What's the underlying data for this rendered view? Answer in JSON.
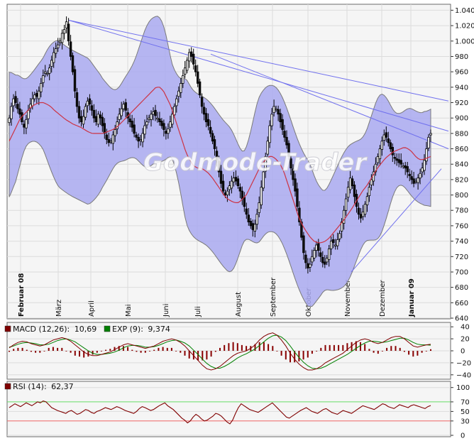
{
  "watermark": "Godmode-Trader",
  "chart_data": [
    {
      "type": "candlestick",
      "title": "",
      "x_labels": [
        "Februar 08",
        "März",
        "April",
        "Mai",
        "Juni",
        "Juli",
        "August",
        "September",
        "Oktober",
        "November",
        "Dezember",
        "Januar 09"
      ],
      "bold_labels": [
        "Februar 08",
        "Januar 09"
      ],
      "yticks": [
        640,
        660,
        680,
        700,
        720,
        740,
        760,
        780,
        800,
        820,
        840,
        860,
        880,
        900,
        920,
        940,
        960,
        980,
        1000,
        1020,
        1040
      ],
      "ylim": [
        640,
        1045
      ],
      "indicators": [
        "Bollinger Bands",
        "Moving Average",
        "Trendlines"
      ],
      "close_series": [
        900,
        915,
        925,
        920,
        912,
        905,
        895,
        888,
        898,
        910,
        918,
        925,
        930,
        928,
        935,
        945,
        955,
        960,
        958,
        965,
        975,
        985,
        990,
        995,
        1000,
        1010,
        1015,
        1025,
        1000,
        980,
        960,
        935,
        915,
        900,
        895,
        902,
        915,
        922,
        918,
        910,
        900,
        895,
        905,
        900,
        890,
        880,
        872,
        868,
        870,
        878,
        885,
        895,
        905,
        912,
        918,
        910,
        900,
        895,
        888,
        880,
        875,
        870,
        872,
        880,
        890,
        895,
        900,
        905,
        908,
        903,
        900,
        895,
        890,
        885,
        880,
        886,
        895,
        905,
        915,
        925,
        935,
        945,
        955,
        965,
        975,
        985,
        980,
        970,
        960,
        945,
        930,
        915,
        905,
        895,
        890,
        880,
        870,
        860,
        845,
        830,
        815,
        805,
        800,
        805,
        812,
        818,
        822,
        818,
        812,
        805,
        795,
        785,
        775,
        765,
        760,
        755,
        762,
        775,
        790,
        810,
        830,
        850,
        870,
        890,
        905,
        915,
        912,
        905,
        895,
        885,
        875,
        865,
        850,
        835,
        820,
        805,
        785,
        765,
        745,
        725,
        712,
        705,
        710,
        720,
        728,
        735,
        728,
        720,
        712,
        710,
        718,
        730,
        740,
        738,
        735,
        742,
        750,
        765,
        780,
        795,
        810,
        822,
        812,
        798,
        785,
        775,
        770,
        778,
        788,
        798,
        810,
        820,
        830,
        840,
        850,
        860,
        870,
        878,
        875,
        868,
        860,
        852,
        848,
        845,
        842,
        840,
        838,
        835,
        830,
        825,
        820,
        815,
        818,
        822,
        828,
        835,
        845,
        860,
        875,
        880
      ],
      "ma_y": [
        870,
        880,
        890,
        900,
        905,
        910,
        915,
        918,
        920,
        920,
        918,
        915,
        910,
        906,
        902,
        898,
        895,
        892,
        890,
        888,
        885,
        882,
        880,
        880,
        880,
        880,
        882,
        884,
        886,
        890,
        895,
        900,
        905,
        910,
        915,
        920,
        925,
        930,
        935,
        940,
        940,
        935,
        925,
        915,
        900,
        885,
        870,
        855,
        845,
        838,
        835,
        835,
        832,
        828,
        822,
        815,
        808,
        800,
        795,
        792,
        790,
        790,
        795,
        800,
        810,
        820,
        830,
        840,
        845,
        850,
        850,
        846,
        840,
        830,
        815,
        800,
        785,
        770,
        760,
        752,
        745,
        740,
        738,
        738,
        740,
        744,
        750,
        756,
        762,
        768,
        775,
        782,
        790,
        798,
        806,
        812,
        820,
        828,
        836,
        842,
        848,
        852,
        856,
        858,
        860,
        862,
        860,
        856,
        850,
        846,
        846,
        848,
        850
      ]
    },
    {
      "type": "macd",
      "legend": [
        {
          "label": "MACD (12,26):",
          "value": "10,69",
          "color": "#800000"
        },
        {
          "label": "EXP (9):",
          "value": "9,374",
          "color": "#008000"
        }
      ],
      "yticks": [
        -40,
        -20,
        0,
        20,
        40
      ],
      "ylim": [
        -45,
        45
      ],
      "macd": [
        5,
        10,
        14,
        16,
        15,
        12,
        10,
        8,
        10,
        14,
        18,
        20,
        22,
        20,
        16,
        10,
        4,
        -2,
        -6,
        -8,
        -8,
        -6,
        -4,
        -2,
        2,
        6,
        10,
        12,
        10,
        8,
        6,
        4,
        6,
        8,
        12,
        16,
        18,
        20,
        18,
        14,
        8,
        0,
        -8,
        -16,
        -24,
        -30,
        -32,
        -30,
        -26,
        -20,
        -14,
        -8,
        -4,
        -2,
        0,
        4,
        10,
        18,
        24,
        28,
        30,
        26,
        18,
        8,
        -4,
        -14,
        -22,
        -28,
        -32,
        -32,
        -30,
        -26,
        -20,
        -16,
        -12,
        -8,
        -4,
        2,
        8,
        14,
        18,
        20,
        18,
        14,
        12,
        14,
        18,
        22,
        24,
        24,
        20,
        14,
        8,
        6,
        8,
        10,
        11
      ],
      "signal": [
        6,
        8,
        11,
        13,
        14,
        13,
        12,
        10,
        10,
        11,
        14,
        17,
        19,
        20,
        18,
        15,
        10,
        5,
        0,
        -4,
        -6,
        -6,
        -5,
        -4,
        -2,
        1,
        5,
        8,
        9,
        9,
        8,
        6,
        6,
        7,
        9,
        12,
        15,
        17,
        18,
        16,
        13,
        8,
        1,
        -6,
        -14,
        -21,
        -26,
        -29,
        -29,
        -26,
        -22,
        -17,
        -12,
        -8,
        -5,
        -1,
        3,
        9,
        15,
        21,
        25,
        26,
        23,
        17,
        8,
        -2,
        -11,
        -19,
        -25,
        -29,
        -30,
        -29,
        -26,
        -22,
        -18,
        -14,
        -10,
        -6,
        -1,
        4,
        9,
        13,
        16,
        16,
        15,
        14,
        15,
        17,
        19,
        21,
        21,
        18,
        14,
        11,
        10,
        10,
        9.4
      ],
      "histogram_note": "MACD minus EXP"
    },
    {
      "type": "rsi",
      "legend": [
        {
          "label": "RSI (14):",
          "value": "62,37",
          "color": "#800000"
        }
      ],
      "yticks": [
        0,
        30,
        50,
        70,
        100
      ],
      "tick_labels": [
        "0",
        "30",
        "50",
        "70",
        "100"
      ],
      "ylim": [
        0,
        110
      ],
      "overbought": 70,
      "oversold": 30,
      "values": [
        58,
        62,
        66,
        63,
        60,
        64,
        68,
        65,
        62,
        66,
        70,
        68,
        72,
        70,
        64,
        58,
        55,
        52,
        50,
        48,
        46,
        50,
        52,
        48,
        44,
        46,
        50,
        54,
        52,
        48,
        46,
        50,
        52,
        55,
        58,
        56,
        54,
        57,
        60,
        58,
        55,
        52,
        50,
        48,
        46,
        50,
        56,
        60,
        58,
        55,
        52,
        54,
        58,
        62,
        65,
        68,
        62,
        58,
        54,
        48,
        42,
        36,
        32,
        26,
        30,
        38,
        44,
        40,
        34,
        30,
        32,
        36,
        40,
        46,
        44,
        40,
        34,
        28,
        24,
        32,
        46,
        58,
        66,
        62,
        58,
        54,
        52,
        50,
        48,
        52,
        56,
        60,
        64,
        68,
        62,
        56,
        50,
        44,
        38,
        36,
        40,
        44,
        48,
        52,
        55,
        58,
        54,
        50,
        48,
        46,
        50,
        54,
        56,
        52,
        48,
        46,
        44,
        48,
        52,
        50,
        48,
        46,
        50,
        54,
        58,
        62,
        60,
        58,
        56,
        54,
        58,
        62,
        66,
        64,
        60,
        58,
        56,
        60,
        64,
        62,
        60,
        58,
        62,
        64,
        62,
        60,
        58,
        56,
        60,
        62.37
      ]
    }
  ]
}
